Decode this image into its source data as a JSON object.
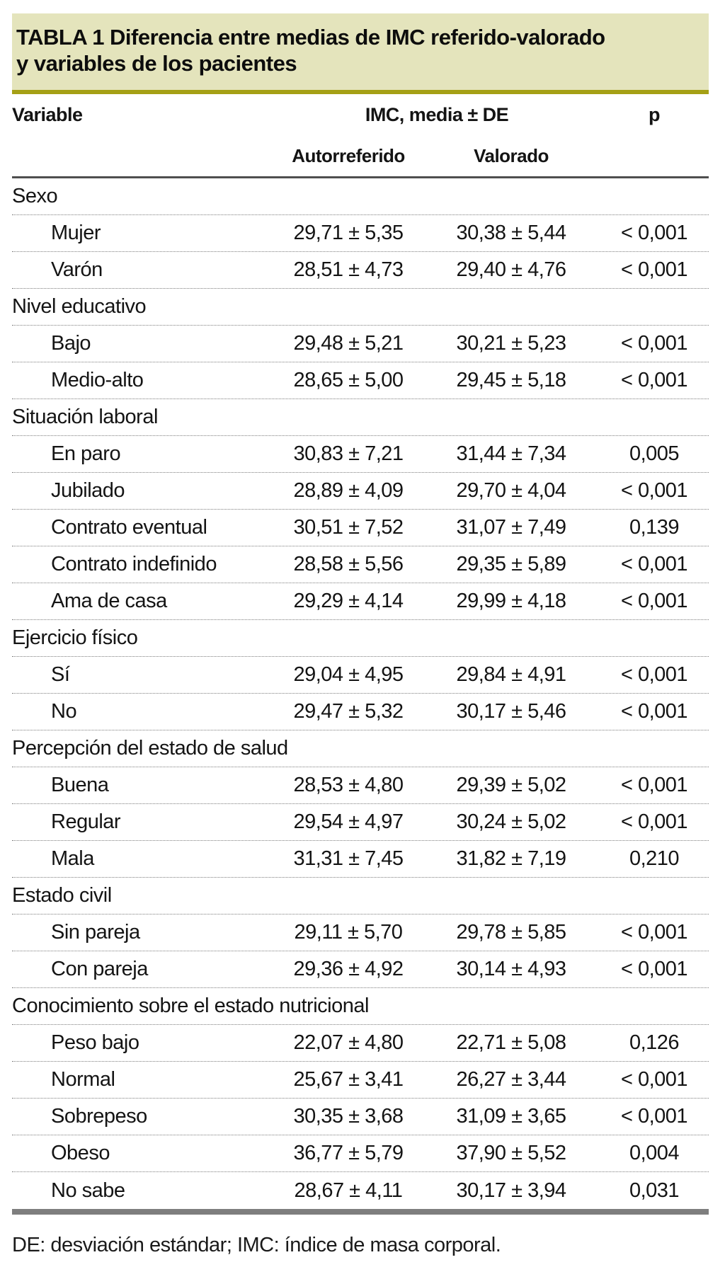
{
  "header": {
    "title": "TABLA 1 Diferencia entre medias de IMC referido-valorado\ny variables de los pacientes"
  },
  "columns": {
    "variable": "Variable",
    "imc": "IMC, media ± DE",
    "p": "p",
    "autorreferido": "Autorreferido",
    "valorado": "Valorado"
  },
  "table": {
    "groups": [
      {
        "label": "Sexo",
        "rows": [
          {
            "label": "Mujer",
            "autorreferido": "29,71 ± 5,35",
            "valorado": "30,38 ± 5,44",
            "p": "< 0,001"
          },
          {
            "label": "Varón",
            "autorreferido": "28,51 ± 4,73",
            "valorado": "29,40 ± 4,76",
            "p": "< 0,001"
          }
        ]
      },
      {
        "label": "Nivel educativo",
        "rows": [
          {
            "label": "Bajo",
            "autorreferido": "29,48 ± 5,21",
            "valorado": "30,21 ± 5,23",
            "p": "< 0,001"
          },
          {
            "label": "Medio-alto",
            "autorreferido": "28,65 ± 5,00",
            "valorado": "29,45 ± 5,18",
            "p": "< 0,001"
          }
        ]
      },
      {
        "label": "Situación laboral",
        "rows": [
          {
            "label": "En paro",
            "autorreferido": "30,83 ± 7,21",
            "valorado": "31,44 ± 7,34",
            "p": "0,005"
          },
          {
            "label": "Jubilado",
            "autorreferido": "28,89 ± 4,09",
            "valorado": "29,70 ± 4,04",
            "p": "< 0,001"
          },
          {
            "label": "Contrato eventual",
            "autorreferido": "30,51 ± 7,52",
            "valorado": "31,07 ± 7,49",
            "p": "0,139"
          },
          {
            "label": "Contrato indefinido",
            "autorreferido": "28,58 ± 5,56",
            "valorado": "29,35 ± 5,89",
            "p": "< 0,001"
          },
          {
            "label": "Ama de casa",
            "autorreferido": "29,29 ± 4,14",
            "valorado": "29,99 ± 4,18",
            "p": "< 0,001"
          }
        ]
      },
      {
        "label": "Ejercicio físico",
        "rows": [
          {
            "label": "Sí",
            "autorreferido": "29,04 ± 4,95",
            "valorado": "29,84 ± 4,91",
            "p": "< 0,001"
          },
          {
            "label": "No",
            "autorreferido": "29,47 ± 5,32",
            "valorado": "30,17 ± 5,46",
            "p": "< 0,001"
          }
        ]
      },
      {
        "label": "Percepción del estado de salud",
        "rows": [
          {
            "label": "Buena",
            "autorreferido": "28,53 ± 4,80",
            "valorado": "29,39 ± 5,02",
            "p": "< 0,001"
          },
          {
            "label": "Regular",
            "autorreferido": "29,54 ± 4,97",
            "valorado": "30,24 ± 5,02",
            "p": "< 0,001"
          },
          {
            "label": "Mala",
            "autorreferido": "31,31 ± 7,45",
            "valorado": "31,82 ± 7,19",
            "p": "0,210"
          }
        ]
      },
      {
        "label": "Estado civil",
        "rows": [
          {
            "label": "Sin pareja",
            "autorreferido": "29,11 ± 5,70",
            "valorado": "29,78 ± 5,85",
            "p": "< 0,001"
          },
          {
            "label": "Con pareja",
            "autorreferido": "29,36 ± 4,92",
            "valorado": "30,14 ± 4,93",
            "p": "< 0,001"
          }
        ]
      },
      {
        "label": "Conocimiento sobre el estado nutricional",
        "rows": [
          {
            "label": "Peso bajo",
            "autorreferido": "22,07 ± 4,80",
            "valorado": "22,71 ± 5,08",
            "p": "0,126"
          },
          {
            "label": "Normal",
            "autorreferido": "25,67 ± 3,41",
            "valorado": "26,27 ± 3,44",
            "p": "< 0,001"
          },
          {
            "label": "Sobrepeso",
            "autorreferido": "30,35 ± 3,68",
            "valorado": "31,09 ± 3,65",
            "p": "< 0,001"
          },
          {
            "label": "Obeso",
            "autorreferido": "36,77 ± 5,79",
            "valorado": "37,90 ± 5,52",
            "p": "0,004"
          },
          {
            "label": "No sabe",
            "autorreferido": "28,67 ± 4,11",
            "valorado": "30,17 ± 3,94",
            "p": "0,031"
          }
        ]
      }
    ]
  },
  "footnote": "DE: desviación estándar; IMC: índice de masa corporal.",
  "colors": {
    "title_band_bg": "#e4e4bc",
    "title_band_rule": "#a5a015",
    "header_rule": "#4f4f4f",
    "bottom_rule": "#7e7e7e"
  }
}
